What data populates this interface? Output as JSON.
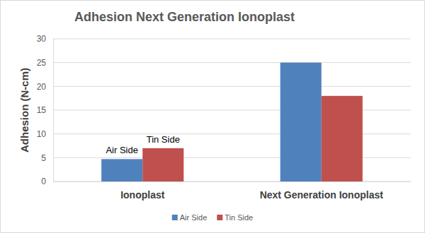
{
  "chart_data": {
    "type": "bar",
    "title": "Adhesion Next Generation Ionoplast",
    "y_label": "Adhesion (N-cm)",
    "categories": [
      "Ionoplast",
      "Next Generation Ionoplast"
    ],
    "series": [
      {
        "name": "Air Side",
        "color": "#4f81bd",
        "values": [
          4.7,
          25
        ]
      },
      {
        "name": "Tin Side",
        "color": "#c0504d",
        "values": [
          7,
          18
        ]
      }
    ],
    "annotations": [
      "Air Side",
      "Tin Side"
    ],
    "ylim": [
      0,
      30
    ],
    "yticks": [
      0,
      5,
      10,
      15,
      20,
      25,
      30
    ],
    "grid": true,
    "legend": "bottom"
  }
}
